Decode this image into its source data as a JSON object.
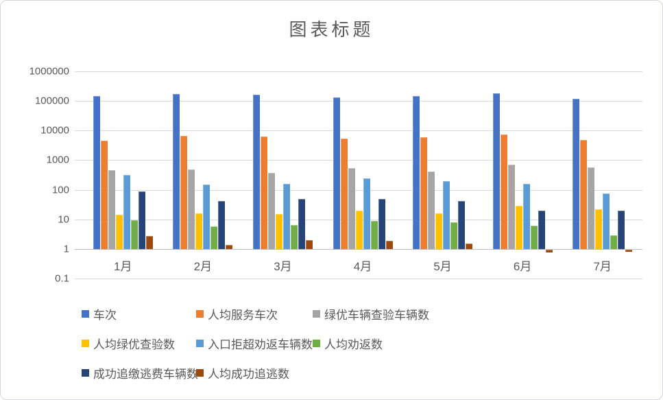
{
  "title": "图表标题",
  "colors": {
    "grid": "#d9d9d9",
    "axis": "#bfbfbf",
    "text": "#595959",
    "background": "#ffffff"
  },
  "chart_data": {
    "type": "bar",
    "title": "图表标题",
    "scale": "log",
    "ylim": [
      0.1,
      1000000
    ],
    "grid": true,
    "legend_position": "bottom",
    "y_ticks": [
      "1000000",
      "100000",
      "10000",
      "1000",
      "100",
      "10",
      "1",
      "0.1"
    ],
    "categories": [
      "1月",
      "2月",
      "3月",
      "4月",
      "5月",
      "6月",
      "7月"
    ],
    "series": [
      {
        "name": "车次",
        "color": "#4472C4",
        "values": [
          150000,
          170000,
          160000,
          130000,
          150000,
          180000,
          120000
        ]
      },
      {
        "name": "人均服务车次",
        "color": "#ED7D31",
        "values": [
          4600,
          6500,
          6200,
          5300,
          5800,
          7200,
          4700
        ]
      },
      {
        "name": "绿优车辆查验车辆数",
        "color": "#A5A5A5",
        "values": [
          460,
          480,
          370,
          530,
          410,
          690,
          560
        ]
      },
      {
        "name": "人均绿优查验数",
        "color": "#FFC000",
        "values": [
          14,
          16,
          15,
          20,
          16,
          28,
          22
        ]
      },
      {
        "name": "入口拒超劝返车辆数",
        "color": "#5B9BD5",
        "values": [
          310,
          150,
          160,
          240,
          200,
          155,
          75
        ]
      },
      {
        "name": "人均劝返数",
        "color": "#70AD47",
        "values": [
          9.5,
          5.8,
          6.3,
          9,
          8,
          6,
          2.9
        ]
      },
      {
        "name": "成功追缴逃费车辆数",
        "color": "#264478",
        "values": [
          90,
          42,
          50,
          49,
          42,
          20,
          20
        ]
      },
      {
        "name": "人均成功追逃数",
        "color": "#9E480E",
        "values": [
          2.8,
          1.4,
          2,
          1.9,
          1.5,
          0.8,
          0.85
        ]
      }
    ]
  }
}
